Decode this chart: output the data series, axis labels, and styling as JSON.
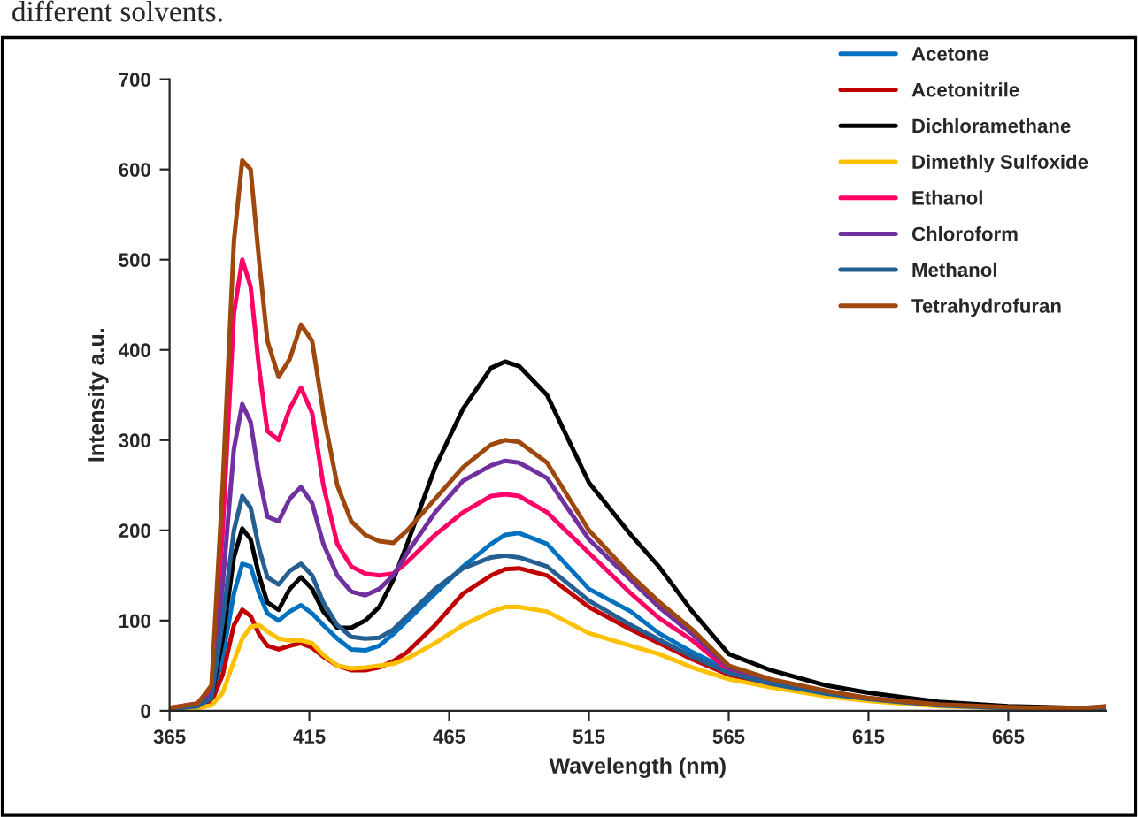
{
  "chart_data": {
    "type": "line",
    "xlabel": "Wavelength (nm)",
    "ylabel": "Intensity a.u.",
    "annotations": [
      "different solvents."
    ],
    "x": [
      365,
      375,
      380,
      384,
      388,
      391,
      394,
      397,
      400,
      404,
      408,
      412,
      416,
      420,
      425,
      430,
      435,
      440,
      445,
      450,
      460,
      470,
      480,
      485,
      490,
      500,
      515,
      530,
      540,
      552,
      565,
      580,
      600,
      615,
      640,
      665,
      690,
      700
    ],
    "xlim": [
      365,
      700
    ],
    "ylim": [
      0,
      700
    ],
    "xticks": [
      365,
      415,
      465,
      515,
      565,
      615,
      665
    ],
    "yticks": [
      0,
      100,
      200,
      300,
      400,
      500,
      600,
      700
    ],
    "grid": false,
    "legend": "top right",
    "marker": "none",
    "line_style": "solid",
    "series": [
      {
        "name": "Acetone",
        "color": "#0070c0",
        "values": [
          2,
          5,
          12,
          60,
          130,
          163,
          160,
          130,
          108,
          100,
          110,
          117,
          108,
          95,
          80,
          68,
          67,
          72,
          85,
          100,
          130,
          160,
          185,
          195,
          197,
          185,
          135,
          110,
          86,
          65,
          45,
          32,
          null,
          null,
          null,
          null,
          null,
          null
        ]
      },
      {
        "name": "Acetonitrile",
        "color": "#c00000",
        "values": [
          2,
          4,
          10,
          40,
          95,
          112,
          105,
          85,
          72,
          68,
          72,
          75,
          70,
          60,
          50,
          45,
          45,
          48,
          55,
          65,
          95,
          130,
          150,
          157,
          158,
          150,
          115,
          90,
          75,
          57,
          40,
          28,
          18,
          12,
          6,
          3,
          2,
          3
        ]
      },
      {
        "name": "Dichloramethane",
        "color": "#000000",
        "values": [
          2,
          5,
          15,
          80,
          170,
          202,
          190,
          150,
          120,
          112,
          135,
          148,
          135,
          110,
          92,
          92,
          100,
          115,
          145,
          185,
          270,
          335,
          380,
          387,
          382,
          350,
          253,
          195,
          160,
          110,
          63,
          45,
          28,
          20,
          10,
          5,
          3,
          4
        ]
      },
      {
        "name": "Dimethly Sulfoxide",
        "color": "#ffc000",
        "values": [
          1,
          3,
          6,
          20,
          55,
          80,
          93,
          95,
          88,
          80,
          78,
          78,
          75,
          62,
          50,
          47,
          48,
          50,
          52,
          58,
          75,
          95,
          110,
          115,
          115,
          110,
          86,
          72,
          63,
          48,
          35,
          26,
          16,
          11,
          5,
          3,
          null,
          null
        ]
      },
      {
        "name": "Ethanol",
        "color": "#ff0066",
        "values": [
          3,
          8,
          25,
          200,
          440,
          500,
          470,
          380,
          310,
          300,
          335,
          358,
          330,
          250,
          185,
          160,
          152,
          150,
          152,
          165,
          195,
          220,
          238,
          240,
          238,
          220,
          175,
          130,
          103,
          78,
          45,
          32,
          null,
          null,
          null,
          null,
          null,
          null
        ]
      },
      {
        "name": "Chloroform",
        "color": "#7030a0",
        "values": [
          2,
          6,
          18,
          140,
          290,
          340,
          320,
          260,
          215,
          210,
          235,
          248,
          230,
          185,
          150,
          132,
          128,
          135,
          150,
          175,
          220,
          255,
          272,
          277,
          275,
          258,
          190,
          145,
          115,
          85,
          48,
          34,
          21,
          14,
          7,
          null,
          null,
          null
        ]
      },
      {
        "name": "Methanol",
        "color": "#255e91",
        "values": [
          2,
          5,
          14,
          100,
          200,
          238,
          225,
          180,
          148,
          140,
          155,
          163,
          150,
          120,
          95,
          82,
          80,
          81,
          90,
          105,
          135,
          158,
          170,
          172,
          170,
          160,
          122,
          95,
          79,
          60,
          42,
          30,
          19,
          13,
          6,
          3,
          2,
          3
        ]
      },
      {
        "name": "Tetrahydrofuran",
        "color": "#9e480e",
        "values": [
          3,
          8,
          28,
          250,
          520,
          610,
          600,
          500,
          410,
          370,
          390,
          428,
          410,
          330,
          250,
          210,
          195,
          188,
          186,
          200,
          235,
          270,
          295,
          300,
          298,
          275,
          200,
          150,
          121,
          90,
          50,
          35,
          22,
          14,
          7,
          4,
          2,
          5
        ]
      }
    ]
  }
}
